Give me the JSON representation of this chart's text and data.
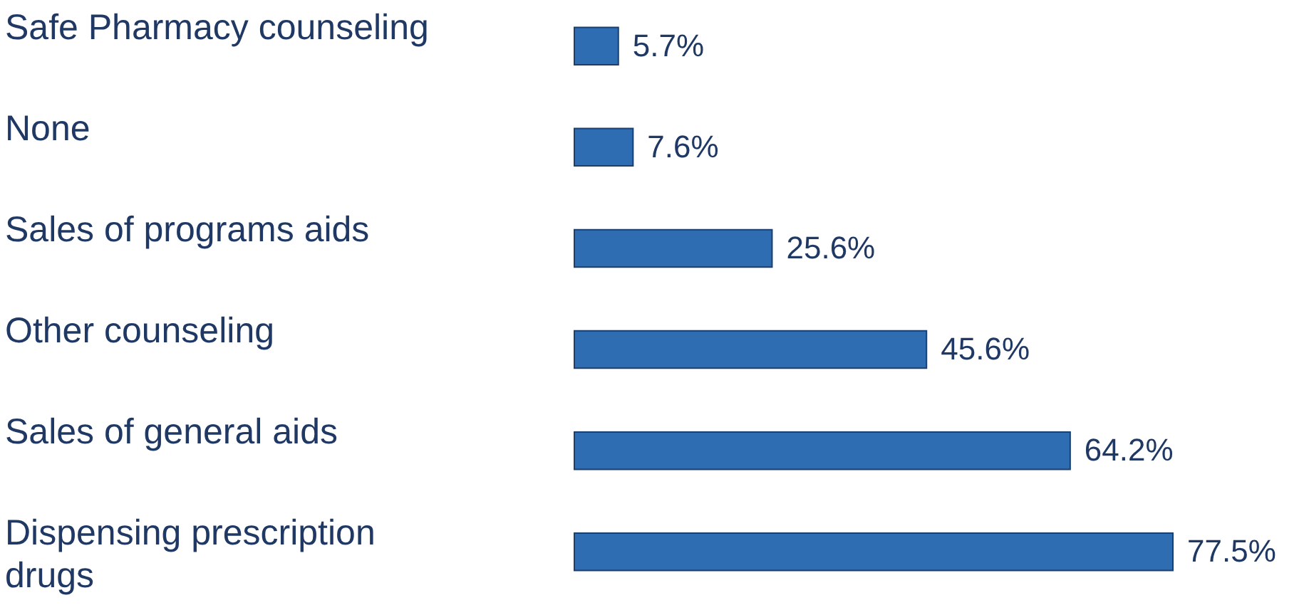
{
  "chart_data": {
    "type": "bar",
    "orientation": "horizontal",
    "categories": [
      "Safe Pharmacy counseling",
      "None",
      "Sales of programs aids",
      "Other counseling",
      "Sales of general aids",
      "Dispensing prescription drugs"
    ],
    "values": [
      5.7,
      7.6,
      25.6,
      45.6,
      64.2,
      77.5
    ],
    "value_labels": [
      "5.7%",
      "7.6%",
      "25.6%",
      "45.6%",
      "64.2%",
      "77.5%"
    ],
    "color": "#2f6db3",
    "grid": false
  }
}
